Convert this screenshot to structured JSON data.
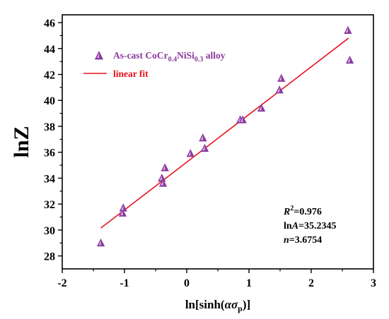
{
  "chart_data": {
    "type": "scatter",
    "xlabel": "ln[sinh(ασp)]",
    "ylabel": "lnZ",
    "xlim": [
      -2,
      3
    ],
    "ylim": [
      27,
      46.6
    ],
    "x_ticks": [
      "-2",
      "-1",
      "0",
      "1",
      "2",
      "3"
    ],
    "y_ticks": [
      "28",
      "30",
      "32",
      "34",
      "36",
      "38",
      "40",
      "42",
      "44",
      "46"
    ],
    "x_tick_values": [
      -2,
      -1,
      0,
      1,
      2,
      3
    ],
    "y_tick_values": [
      28,
      30,
      32,
      34,
      36,
      38,
      40,
      42,
      44,
      46
    ],
    "legend_position": "top-left",
    "series": [
      {
        "name": "As-cast CoCr0.4NiSi0.3 alloy",
        "marker": "triangle",
        "color": "#8b3a9e",
        "x": [
          -1.38,
          -1.03,
          -1.02,
          -0.4,
          -0.38,
          -0.35,
          0.06,
          0.26,
          0.29,
          0.86,
          0.9,
          1.2,
          1.49,
          1.52,
          2.59,
          2.62
        ],
        "y": [
          29.0,
          31.3,
          31.7,
          34.0,
          33.6,
          34.8,
          35.9,
          37.1,
          36.3,
          38.5,
          38.5,
          39.4,
          40.8,
          41.7,
          45.4,
          43.1
        ]
      },
      {
        "name": "linear fit",
        "type": "line",
        "color": "#e8141c",
        "x": [
          -1.38,
          2.6
        ],
        "y": [
          30.15,
          44.8
        ]
      }
    ],
    "annotations": [
      "R2=0.976",
      "lnA=35.2345",
      "n=3.6754"
    ]
  },
  "legend": {
    "scatter_prefix": "As-cast CoCr",
    "scatter_sub1": "0.4",
    "scatter_mid": "NiSi",
    "scatter_sub2": "0.3",
    "scatter_suffix": " alloy",
    "line_label": "linear fit"
  },
  "axis_titles": {
    "y": "lnZ",
    "x_prefix": "ln[sinh(",
    "x_alpha": "α",
    "x_sigma": "σ",
    "x_sub": "p",
    "x_suffix": ")]"
  },
  "annotation_text": {
    "r2_sym": "R",
    "r2_sup": "2",
    "r2_val": "=0.976",
    "lna_ln": "ln",
    "lna_sym": "A",
    "lna_val": "=35.2345",
    "n_sym": "n",
    "n_val": "=3.6754"
  }
}
